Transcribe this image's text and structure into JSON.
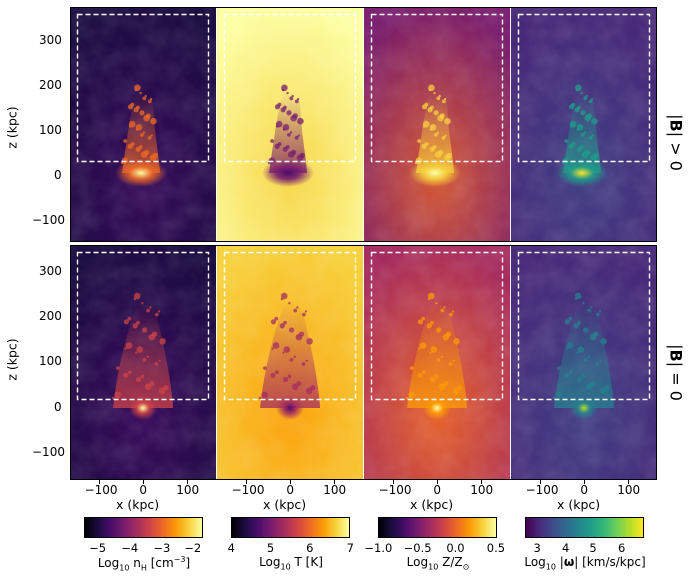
{
  "figure": {
    "panels": {
      "rows": [
        {
          "label": "|B| > 0",
          "label_parts": [
            "|",
            "B",
            "| > 0"
          ]
        },
        {
          "label": "|B| = 0",
          "label_parts": [
            "|",
            "B",
            "| = 0"
          ]
        }
      ],
      "columns": [
        "density",
        "temperature",
        "metallicity",
        "vorticity"
      ]
    },
    "axes": {
      "xlabel": "x (kpc)",
      "ylabel": "z (kpc)",
      "x_ticks": [
        "−100",
        "0",
        "100"
      ],
      "y_ticks": [
        "300",
        "200",
        "100",
        "0",
        "−100"
      ]
    },
    "colorbars": [
      {
        "name": "density",
        "title_parts": [
          "Log",
          "10",
          " n",
          "H",
          " [cm",
          "−3",
          "]"
        ],
        "ticks": [
          "−5",
          "−4",
          "−3",
          "−2"
        ],
        "colormap": "inferno"
      },
      {
        "name": "temperature",
        "title_parts": [
          "Log",
          "10",
          " T [K]"
        ],
        "ticks": [
          "4",
          "5",
          "6",
          "7"
        ],
        "colormap": "inferno"
      },
      {
        "name": "metallicity",
        "title_parts": [
          "Log",
          "10",
          " Z/Z",
          "⊙"
        ],
        "ticks": [
          "−1.0",
          "−0.5",
          "0.0",
          "0.5"
        ],
        "colormap": "inferno"
      },
      {
        "name": "vorticity",
        "title_parts": [
          "Log",
          "10",
          " |",
          "ω",
          "| [km/s/kpc]"
        ],
        "ticks": [
          "3",
          "4",
          "5",
          "6"
        ],
        "colormap": "viridis"
      }
    ],
    "colors": {
      "inferno": [
        "#000004",
        "#1b0c41",
        "#4a0c6b",
        "#781c6d",
        "#a52c60",
        "#cf4446",
        "#ed6925",
        "#fb9b06",
        "#f7d13d",
        "#fcffa4"
      ],
      "viridis": [
        "#440154",
        "#482878",
        "#3e4989",
        "#31688e",
        "#26828e",
        "#1f9e89",
        "#35b779",
        "#6ece58",
        "#b5de2b",
        "#fde725"
      ],
      "box_outline": "#ffffff"
    }
  }
}
